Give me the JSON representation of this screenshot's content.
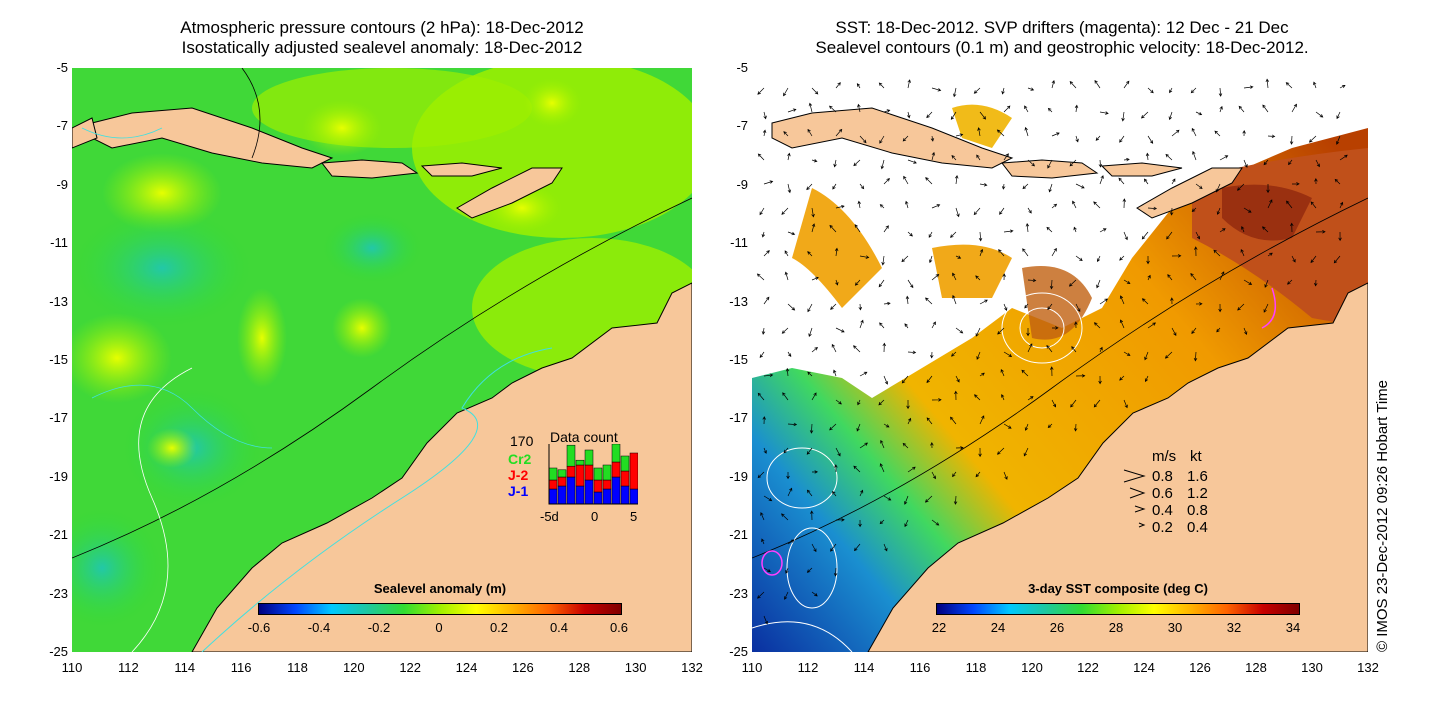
{
  "left_panel": {
    "title_line1": "Atmospheric pressure contours (2 hPa): 18-Dec-2012",
    "title_line2": "Isostatically adjusted sealevel anomaly: 18-Dec-2012",
    "colorbar_title": "Sealevel anomaly (m)",
    "colorbar_ticks": [
      "-0.6",
      "-0.4",
      "-0.2",
      "0",
      "0.2",
      "0.4",
      "0.6"
    ],
    "colorbar_colors": [
      "#00007f",
      "#0046ff",
      "#00c8ff",
      "#1ec8a0",
      "#32dc32",
      "#a0f000",
      "#ffff00",
      "#ffb400",
      "#ff6400",
      "#c80000",
      "#7f0000"
    ],
    "data_count": {
      "label": "Data count",
      "max_value": "170",
      "satellites": [
        {
          "name": "Cr2",
          "color": "#22dd22"
        },
        {
          "name": "J-2",
          "color": "#ff0000"
        },
        {
          "name": "J-1",
          "color": "#0000ff"
        }
      ],
      "axis_ticks": [
        "-5d",
        "0",
        "5"
      ],
      "bars": [
        {
          "j1": 0.25,
          "j2": 0.15,
          "cr2": 0.2
        },
        {
          "j1": 0.3,
          "j2": 0.15,
          "cr2": 0.12
        },
        {
          "j1": 0.45,
          "j2": 0.18,
          "cr2": 0.35
        },
        {
          "j1": 0.3,
          "j2": 0.35,
          "cr2": 0.08
        },
        {
          "j1": 0.4,
          "j2": 0.25,
          "cr2": 0.25
        },
        {
          "j1": 0.2,
          "j2": 0.2,
          "cr2": 0.2
        },
        {
          "j1": 0.25,
          "j2": 0.15,
          "cr2": 0.25
        },
        {
          "j1": 0.45,
          "j2": 0.25,
          "cr2": 0.3
        },
        {
          "j1": 0.3,
          "j2": 0.25,
          "cr2": 0.25
        },
        {
          "j1": 0.25,
          "j2": 0.6,
          "cr2": 0.0
        }
      ]
    }
  },
  "right_panel": {
    "title_line1": "SST: 18-Dec-2012. SVP drifters (magenta): 12 Dec - 21 Dec",
    "title_line2": "Sealevel contours (0.1 m) and geostrophic velocity: 18-Dec-2012.",
    "colorbar_title": "3-day SST composite (deg C)",
    "colorbar_ticks": [
      "22",
      "24",
      "26",
      "28",
      "30",
      "32",
      "34"
    ],
    "colorbar_colors": [
      "#00007f",
      "#0046ff",
      "#00c8ff",
      "#1ec8a0",
      "#32dc32",
      "#a0f000",
      "#ffff00",
      "#ffb400",
      "#ff6400",
      "#c80000",
      "#7f0000"
    ],
    "speed_legend": {
      "header_ms": "m/s",
      "header_kt": "kt",
      "rows": [
        {
          "ms": "0.8",
          "kt": "1.6"
        },
        {
          "ms": "0.6",
          "kt": "1.2"
        },
        {
          "ms": "0.4",
          "kt": "0.8"
        },
        {
          "ms": "0.2",
          "kt": "0.4"
        }
      ]
    }
  },
  "axes": {
    "y_ticks": [
      "-5",
      "-7",
      "-9",
      "-11",
      "-13",
      "-15",
      "-17",
      "-19",
      "-21",
      "-23",
      "-25"
    ],
    "x_ticks": [
      "110",
      "112",
      "114",
      "116",
      "118",
      "120",
      "122",
      "124",
      "126",
      "128",
      "130",
      "132"
    ]
  },
  "credit": "© IMOS 23-Dec-2012 09:26 Hobart Time",
  "colors": {
    "land": "#f7c79a",
    "ocean_low_sst": "#1a8fd0",
    "ocean_mid": "#f0a000"
  }
}
